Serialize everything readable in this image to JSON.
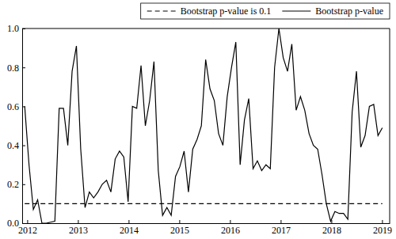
{
  "chart_data": {
    "type": "line",
    "x": [
      2011.95,
      2012.035,
      2012.12,
      2012.205,
      2012.29,
      2012.375,
      2012.46,
      2012.545,
      2012.63,
      2012.715,
      2012.8,
      2012.885,
      2012.97,
      2013.055,
      2013.14,
      2013.225,
      2013.31,
      2013.395,
      2013.48,
      2013.565,
      2013.65,
      2013.735,
      2013.82,
      2013.905,
      2013.99,
      2014.075,
      2014.16,
      2014.245,
      2014.33,
      2014.415,
      2014.5,
      2014.585,
      2014.67,
      2014.755,
      2014.84,
      2014.925,
      2015.01,
      2015.095,
      2015.18,
      2015.265,
      2015.35,
      2015.435,
      2015.52,
      2015.605,
      2015.69,
      2015.775,
      2015.86,
      2015.945,
      2016.03,
      2016.115,
      2016.2,
      2016.285,
      2016.37,
      2016.455,
      2016.54,
      2016.625,
      2016.71,
      2016.795,
      2016.88,
      2016.965,
      2017.05,
      2017.135,
      2017.22,
      2017.305,
      2017.39,
      2017.475,
      2017.56,
      2017.645,
      2017.73,
      2017.815,
      2017.9,
      2017.985,
      2018.07,
      2018.155,
      2018.24,
      2018.325,
      2018.41,
      2018.495,
      2018.58,
      2018.665,
      2018.75,
      2018.835,
      2018.92,
      2019.005
    ],
    "series": [
      {
        "name": "Bootstrap p-value is 0.1",
        "color": "#000000",
        "line_style": "dashed",
        "values": [
          0.1,
          0.1,
          0.1,
          0.1,
          0.1,
          0.1,
          0.1,
          0.1,
          0.1,
          0.1,
          0.1,
          0.1,
          0.1,
          0.1,
          0.1,
          0.1,
          0.1,
          0.1,
          0.1,
          0.1,
          0.1,
          0.1,
          0.1,
          0.1,
          0.1,
          0.1,
          0.1,
          0.1,
          0.1,
          0.1,
          0.1,
          0.1,
          0.1,
          0.1,
          0.1,
          0.1,
          0.1,
          0.1,
          0.1,
          0.1,
          0.1,
          0.1,
          0.1,
          0.1,
          0.1,
          0.1,
          0.1,
          0.1,
          0.1,
          0.1,
          0.1,
          0.1,
          0.1,
          0.1,
          0.1,
          0.1,
          0.1,
          0.1,
          0.1,
          0.1,
          0.1,
          0.1,
          0.1,
          0.1,
          0.1,
          0.1,
          0.1,
          0.1,
          0.1,
          0.1,
          0.1,
          0.1,
          0.1,
          0.1,
          0.1,
          0.1,
          0.1,
          0.1,
          0.1,
          0.1,
          0.1,
          0.1,
          0.1,
          0.1
        ]
      },
      {
        "name": "Bootstrap p-value",
        "color": "#000000",
        "line_style": "solid",
        "values": [
          0.6,
          0.3,
          0.07,
          0.12,
          0.0,
          0.0,
          0.005,
          0.01,
          0.59,
          0.59,
          0.4,
          0.78,
          0.91,
          0.38,
          0.08,
          0.16,
          0.13,
          0.16,
          0.2,
          0.22,
          0.16,
          0.33,
          0.37,
          0.34,
          0.11,
          0.6,
          0.59,
          0.81,
          0.5,
          0.63,
          0.83,
          0.27,
          0.04,
          0.08,
          0.04,
          0.24,
          0.29,
          0.37,
          0.16,
          0.38,
          0.43,
          0.5,
          0.84,
          0.69,
          0.63,
          0.46,
          0.4,
          0.65,
          0.8,
          0.93,
          0.3,
          0.53,
          0.64,
          0.28,
          0.32,
          0.27,
          0.3,
          0.28,
          0.8,
          1.0,
          0.85,
          0.78,
          0.92,
          0.58,
          0.65,
          0.58,
          0.46,
          0.4,
          0.38,
          0.25,
          0.1,
          0.01,
          0.06,
          0.05,
          0.05,
          0.02,
          0.57,
          0.78,
          0.39,
          0.45,
          0.6,
          0.61,
          0.45,
          0.49
        ]
      }
    ],
    "xlim": [
      2011.9,
      2019.15
    ],
    "xticks": [
      2012,
      2013,
      2014,
      2015,
      2016,
      2017,
      2018,
      2019
    ],
    "ylim": [
      0,
      1
    ],
    "yticks": [
      {
        "value": 0,
        "label": "0.0"
      },
      {
        "value": 0.2,
        "label": "0.2"
      },
      {
        "value": 0.4,
        "label": "0.4"
      },
      {
        "value": 0.6,
        "label": "0.6"
      },
      {
        "value": 0.8,
        "label": "0.8"
      },
      {
        "value": 1,
        "label": "1.0"
      }
    ],
    "legend": "top-right"
  }
}
